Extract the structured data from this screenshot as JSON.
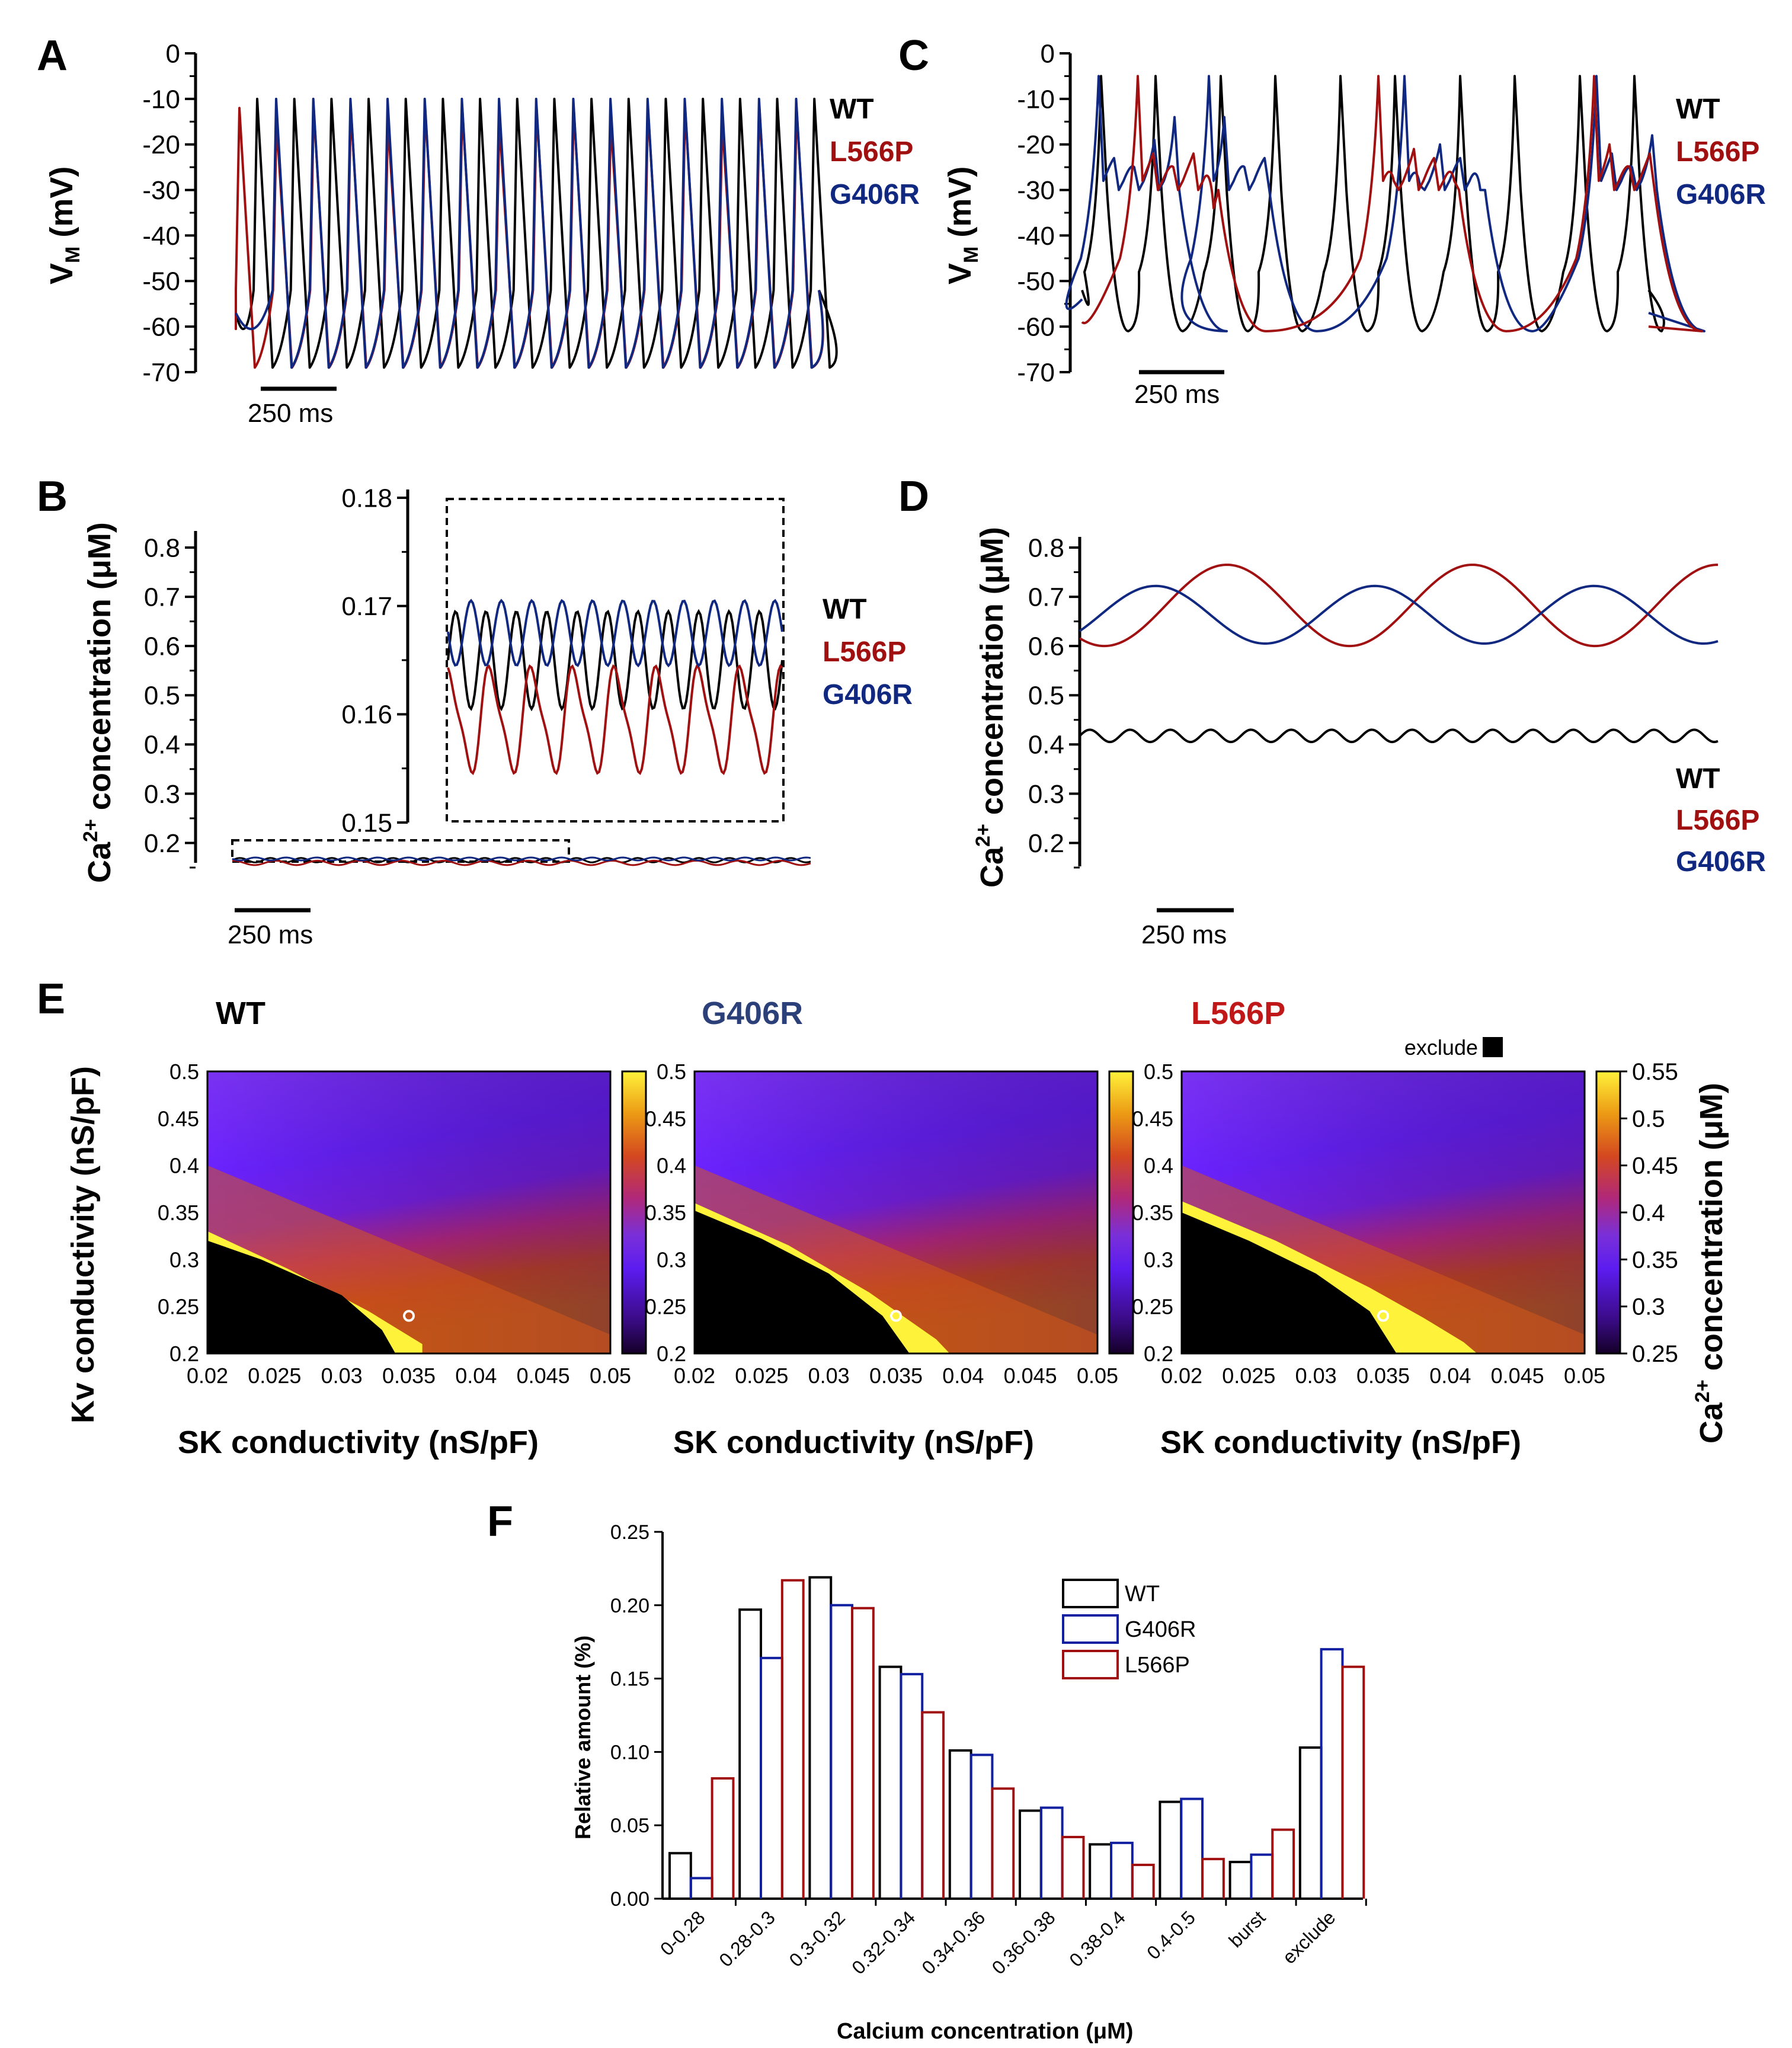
{
  "colors": {
    "wt": "#000000",
    "l566p": "#a01010",
    "g406r": "#102880",
    "e_l566p": "#c01818",
    "e_g406r": "#2b3f78"
  },
  "panel_labels": {
    "a": "A",
    "b": "B",
    "c": "C",
    "d": "D",
    "e": "E",
    "f": "F"
  },
  "legend": {
    "wt": "WT",
    "l566p": "L566P",
    "g406r": "G406R"
  },
  "scale_bar": "250 ms",
  "axis_labels": {
    "vm_main": "V",
    "vm_sub": "M",
    "vm_unit": " (mV)",
    "ca_pre": "Ca",
    "ca_sup": "2+",
    "ca_post": " concentration (μM)",
    "kv": "Kv conductivity (nS/pF)",
    "sk": "SK conductivity (nS/pF)"
  },
  "colorbar_exclude": "exclude",
  "chart_data": [
    {
      "id": "A",
      "type": "line",
      "ylabel": "V_M (mV)",
      "ylim": [
        -70,
        0
      ],
      "yticks": [
        "0",
        "-10",
        "-20",
        "-30",
        "-40",
        "-50",
        "-60",
        "-70"
      ],
      "series": [
        {
          "name": "WT",
          "description": "regular spiking, ~21 spikes",
          "peak": -10,
          "trough": -69
        },
        {
          "name": "L566P",
          "description": "regular spiking, ~21 spikes",
          "peak": -12,
          "trough": -69
        },
        {
          "name": "G406R",
          "description": "regular spiking, ~21 spikes",
          "peak": -10,
          "trough": -70
        }
      ]
    },
    {
      "id": "B",
      "type": "line",
      "ylabel": "Ca2+ concentration (μM)",
      "ylim": [
        0.15,
        0.8
      ],
      "yticks": [
        "0.8",
        "0.7",
        "0.6",
        "0.5",
        "0.4",
        "0.3",
        "0.2"
      ],
      "inset": {
        "ylim": [
          0.15,
          0.18
        ],
        "yticks": [
          "0.18",
          "0.17",
          "0.16",
          "0.15"
        ]
      },
      "series": [
        {
          "name": "WT",
          "min": 0.1605,
          "max": 0.1695,
          "cycles": 11
        },
        {
          "name": "L566P",
          "min": 0.155,
          "max": 0.164,
          "cycles": 8
        },
        {
          "name": "G406R",
          "min": 0.1645,
          "max": 0.1705,
          "cycles": 11
        }
      ]
    },
    {
      "id": "C",
      "type": "line",
      "ylabel": "V_M (mV)",
      "ylim": [
        -70,
        0
      ],
      "yticks": [
        "0",
        "-10",
        "-20",
        "-30",
        "-40",
        "-50",
        "-60",
        "-70"
      ],
      "series": [
        {
          "name": "WT",
          "description": "regular spiking",
          "peak": -5,
          "trough": -61
        },
        {
          "name": "L566P",
          "description": "bursting",
          "peak": -5,
          "trough": -61
        },
        {
          "name": "G406R",
          "description": "bursting",
          "peak": -5,
          "trough": -61
        }
      ]
    },
    {
      "id": "D",
      "type": "line",
      "ylabel": "Ca2+ concentration (μM)",
      "ylim": [
        0.15,
        0.8
      ],
      "yticks": [
        "0.8",
        "0.7",
        "0.6",
        "0.5",
        "0.4",
        "0.3",
        "0.2"
      ],
      "series": [
        {
          "name": "WT",
          "min": 0.405,
          "max": 0.43
        },
        {
          "name": "L566P",
          "min": 0.6,
          "max": 0.765
        },
        {
          "name": "G406R",
          "min": 0.605,
          "max": 0.722
        }
      ]
    },
    {
      "id": "E",
      "type": "heatmap",
      "titles": [
        "WT",
        "G406R",
        "L566P"
      ],
      "xlabel": "SK conductivity (nS/pF)",
      "ylabel": "Kv conductivity (nS/pF)",
      "xlim": [
        0.02,
        0.05
      ],
      "ylim": [
        0.2,
        0.5
      ],
      "xticks": [
        "0.02",
        "0.025",
        "0.03",
        "0.035",
        "0.04",
        "0.045",
        "0.05"
      ],
      "yticks": [
        "0.5",
        "0.45",
        "0.4",
        "0.35",
        "0.3",
        "0.25",
        "0.2"
      ],
      "colorbar": {
        "label": "Ca2+ concentration (μM)",
        "range": [
          0.25,
          0.55
        ],
        "ticks": [
          "0.55",
          "0.5",
          "0.45",
          "0.4",
          "0.35",
          "0.3",
          "0.25"
        ]
      },
      "marker": {
        "x": 0.035,
        "y": 0.24
      }
    },
    {
      "id": "F",
      "type": "bar",
      "xlabel": "Calcium concentration (μM)",
      "ylabel": "Relative amount (%)",
      "ylim": [
        0,
        0.25
      ],
      "yticks": [
        "0.00",
        "0.05",
        "0.10",
        "0.15",
        "0.20",
        "0.25"
      ],
      "categories": [
        "0-0.28",
        "0.28-0.3",
        "0.3-0.32",
        "0.32-0.34",
        "0.34-0.36",
        "0.36-0.38",
        "0.38-0.4",
        "0.4-0.5",
        "burst",
        "exclude"
      ],
      "series": [
        {
          "name": "WT",
          "values": [
            0.031,
            0.197,
            0.219,
            0.158,
            0.101,
            0.06,
            0.037,
            0.066,
            0.025,
            0.103
          ]
        },
        {
          "name": "G406R",
          "values": [
            0.014,
            0.164,
            0.2,
            0.153,
            0.098,
            0.062,
            0.038,
            0.068,
            0.03,
            0.17
          ]
        },
        {
          "name": "L566P",
          "values": [
            0.082,
            0.217,
            0.198,
            0.127,
            0.075,
            0.042,
            0.023,
            0.027,
            0.047,
            0.158
          ]
        }
      ]
    }
  ]
}
